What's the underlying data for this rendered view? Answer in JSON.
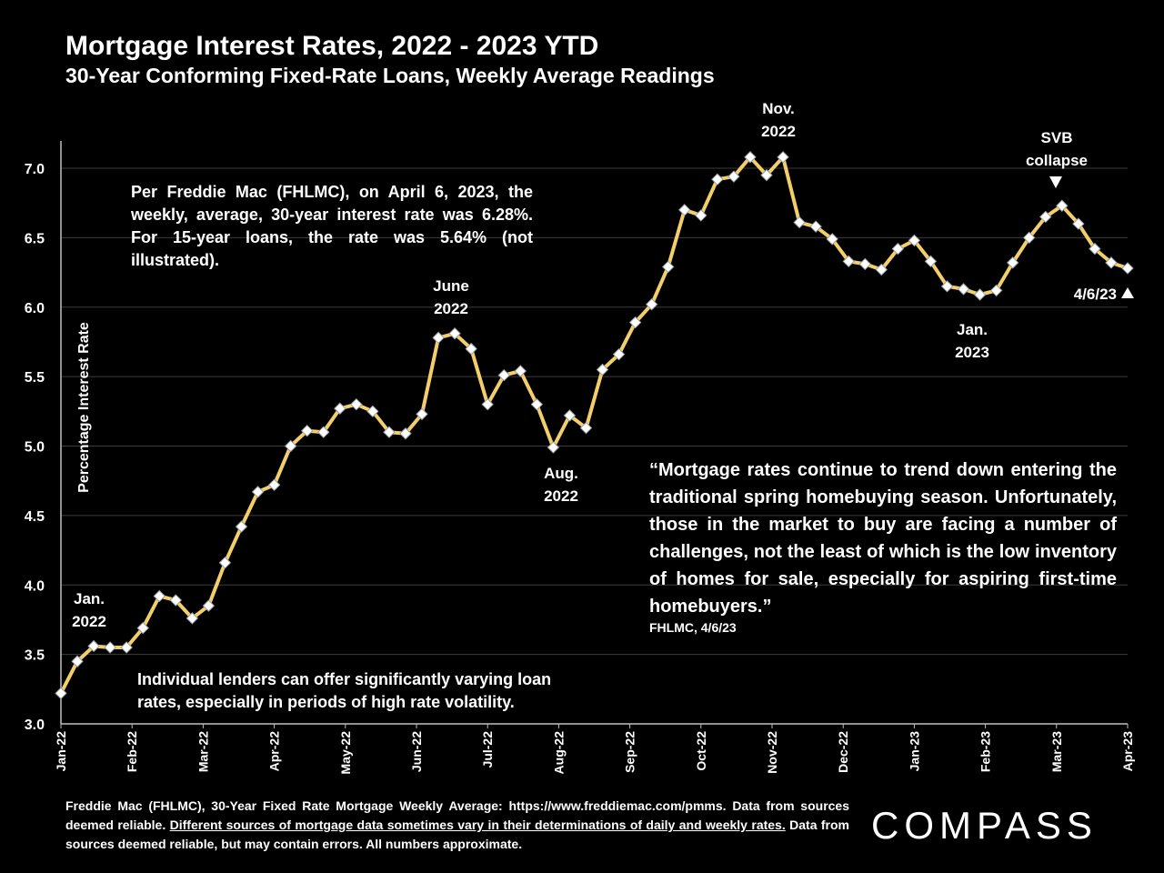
{
  "header": {
    "title": "Mortgage Interest Rates, 2022 - 2023 YTD",
    "subtitle": "30-Year Conforming Fixed-Rate Loans, Weekly Average Readings"
  },
  "notes": {
    "freddie": "Per Freddie Mac (FHLMC), on April 6, 2023, the weekly, average, 30-year interest rate was 6.28%. For 15-year loans, the rate was 5.64% (not illustrated).",
    "lenders": "Individual lenders can offer significantly varying loan rates, especially in periods of high rate volatility.",
    "quote": "“Mortgage rates continue to trend down entering the traditional spring homebuying season. Unfortunately, those in the market to buy are facing a number of challenges, not the least of which is the low inventory of homes for sale, especially for aspiring first-time homebuyers.”",
    "quote_source": "FHLMC, 4/6/23"
  },
  "footer": {
    "source_part1": "Freddie Mac (FHLMC), 30-Year Fixed Rate Mortgage Weekly Average:  https://www.freddiemac.com/pmms. Data from sources deemed reliable. ",
    "source_underlined": "Different sources of mortgage data sometimes vary in their determinations of daily and weekly rates.",
    "source_part2": " Data from sources deemed reliable, but may contain errors. All numbers approximate.",
    "logo": "COMPASS"
  },
  "colors": {
    "background": "#000000",
    "line": "#f2cf6b",
    "marker": "#ffffff",
    "grid": "#3c3c3c",
    "text": "#ffffff"
  },
  "chart_data": {
    "type": "line",
    "ylabel": "Percentage Interest  Rate",
    "xlabel": "",
    "ylim": [
      3.0,
      7.0
    ],
    "yticks": [
      "3.0",
      "3.5",
      "4.0",
      "4.5",
      "5.0",
      "5.5",
      "6.0",
      "6.5",
      "7.0"
    ],
    "grid": true,
    "x_tick_labels": [
      "Jan-22",
      "Feb-22",
      "Mar-22",
      "Apr-22",
      "May-22",
      "Jun-22",
      "Jul-22",
      "Aug-22",
      "Sep-22",
      "Oct-22",
      "Nov-22",
      "Dec-22",
      "Jan-23",
      "Feb-23",
      "Mar-23",
      "Apr-23"
    ],
    "series": [
      {
        "values": [
          3.22,
          3.45,
          3.56,
          3.55,
          3.55,
          3.69,
          3.92,
          3.89,
          3.76,
          3.85,
          4.16,
          4.42,
          4.67,
          4.72,
          5.0,
          5.11,
          5.1,
          5.27,
          5.3,
          5.25,
          5.1,
          5.09,
          5.23,
          5.78,
          5.81,
          5.7,
          5.3,
          5.51,
          5.54,
          5.3,
          4.99,
          5.22,
          5.13,
          5.55,
          5.66,
          5.89,
          6.02,
          6.29,
          6.7,
          6.66,
          6.92,
          6.94,
          7.08,
          6.95,
          7.08,
          6.61,
          6.58,
          6.49,
          6.33,
          6.31,
          6.27,
          6.42,
          6.48,
          6.33,
          6.15,
          6.13,
          6.09,
          6.12,
          6.32,
          6.5,
          6.65,
          6.73,
          6.6,
          6.42,
          6.32,
          6.28
        ]
      }
    ],
    "annotations": [
      {
        "id": "jan22",
        "lines": [
          "Jan.",
          "2022"
        ]
      },
      {
        "id": "jun22",
        "lines": [
          "June",
          "2022"
        ]
      },
      {
        "id": "aug22",
        "lines": [
          "Aug.",
          "2022"
        ]
      },
      {
        "id": "nov22",
        "lines": [
          "Nov.",
          "2022"
        ]
      },
      {
        "id": "jan23",
        "lines": [
          "Jan.",
          "2023"
        ]
      },
      {
        "id": "svb",
        "lines": [
          "SVB",
          "collapse"
        ]
      },
      {
        "id": "last",
        "lines": [
          "4/6/23"
        ]
      }
    ]
  }
}
